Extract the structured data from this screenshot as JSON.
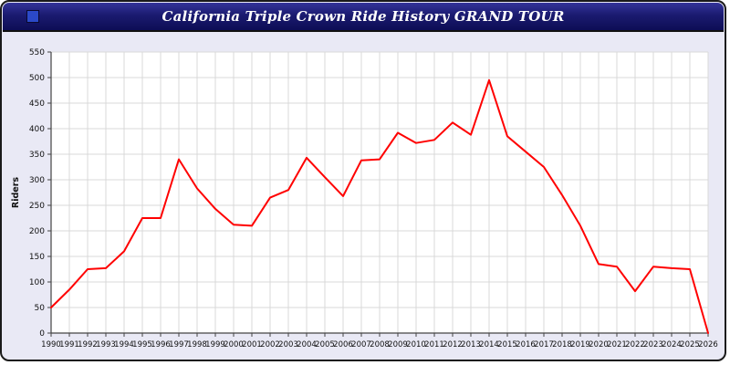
{
  "header": {
    "title": "California Triple Crown Ride History GRAND TOUR",
    "icon": "window-icon"
  },
  "colors": {
    "page_background": "#e9e9f5",
    "titlebar_top": "#34349a",
    "titlebar_bottom": "#0d0d55",
    "title_text": "#ffffff",
    "line": "#ff0000",
    "grid": "#d9d9d9",
    "axis": "#444444",
    "plot_background": "#ffffff"
  },
  "chart_data": {
    "type": "line",
    "title": "California Triple Crown Ride History GRAND TOUR",
    "xlabel": "",
    "ylabel": "Riders",
    "ylim": [
      0,
      550
    ],
    "ytick_step": 50,
    "grid": true,
    "legend_position": "none",
    "x": [
      1990,
      1991,
      1992,
      1993,
      1994,
      1995,
      1996,
      1997,
      1998,
      1999,
      2000,
      2001,
      2002,
      2003,
      2004,
      2005,
      2006,
      2007,
      2008,
      2009,
      2010,
      2011,
      2012,
      2013,
      2014,
      2015,
      2016,
      2017,
      2018,
      2019,
      2020,
      2021,
      2022,
      2023,
      2024,
      2025,
      2026
    ],
    "series": [
      {
        "name": "Riders",
        "color": "#ff0000",
        "values": [
          50,
          85,
          125,
          127,
          160,
          225,
          225,
          340,
          283,
          243,
          212,
          210,
          265,
          280,
          343,
          305,
          268,
          338,
          340,
          392,
          372,
          378,
          412,
          388,
          495,
          385,
          355,
          325,
          270,
          210,
          135,
          130,
          82,
          130,
          127,
          125,
          0
        ]
      }
    ]
  }
}
